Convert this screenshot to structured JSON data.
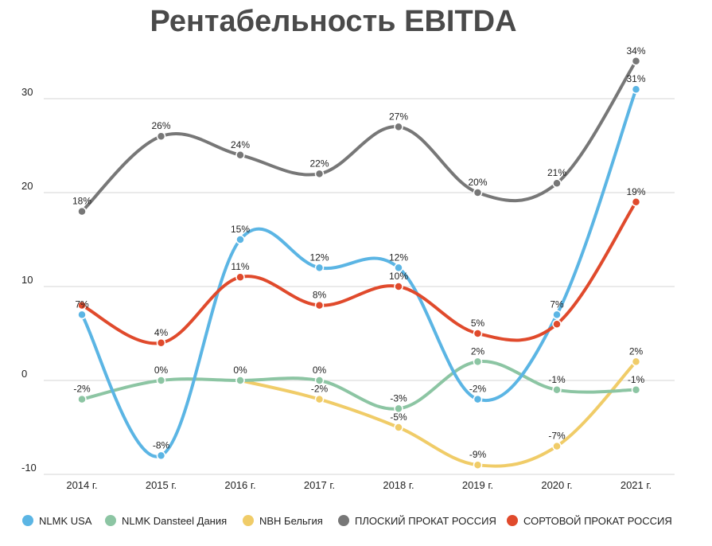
{
  "chart_data": {
    "type": "line",
    "title": "Рентабельность EBITDA",
    "xlabel": "",
    "ylabel": "",
    "categories": [
      "2014 г.",
      "2015 г.",
      "2016 г.",
      "2017 г.",
      "2018 г.",
      "2019 г.",
      "2020 г.",
      "2021 г."
    ],
    "ylim": [
      -10,
      35
    ],
    "yticks": [
      -10,
      0,
      10,
      20,
      30
    ],
    "grid": true,
    "legend_position": "bottom",
    "series": [
      {
        "name": "NLMK USA",
        "color": "#5bb5e4",
        "values": [
          7,
          -8,
          15,
          12,
          12,
          -2,
          7,
          31
        ],
        "labels": [
          "7%",
          "-8%",
          "15%",
          "12%",
          "12%",
          "-2%",
          "7%",
          "31%"
        ]
      },
      {
        "name": "NLMK Dansteel Дания",
        "color": "#8cc5a3",
        "values": [
          -2,
          0,
          0,
          0,
          -3,
          2,
          -1,
          -1
        ],
        "labels": [
          "-2%",
          "0%",
          "0%",
          "0%",
          "-3%",
          "2%",
          "-1%",
          "-1%"
        ]
      },
      {
        "name": "NBH Бельгия",
        "color": "#f0cc68",
        "values": [
          null,
          null,
          0,
          -2,
          -5,
          -9,
          -7,
          2
        ],
        "labels": [
          null,
          null,
          null,
          "-2%",
          "-5%",
          "-9%",
          "-7%",
          "2%"
        ]
      },
      {
        "name": "ПЛОСКИЙ ПРОКАТ РОССИЯ",
        "color": "#777777",
        "values": [
          18,
          26,
          24,
          22,
          27,
          20,
          21,
          34
        ],
        "labels": [
          "18%",
          "26%",
          "24%",
          "22%",
          "27%",
          "20%",
          "21%",
          "34%"
        ]
      },
      {
        "name": "СОРТОВОЙ ПРОКАТ РОССИЯ",
        "color": "#e04a2c",
        "values": [
          8,
          4,
          11,
          8,
          10,
          5,
          6,
          19
        ],
        "labels": [
          null,
          "4%",
          "11%",
          "8%",
          "10%",
          "5%",
          null,
          "19%"
        ]
      }
    ]
  }
}
